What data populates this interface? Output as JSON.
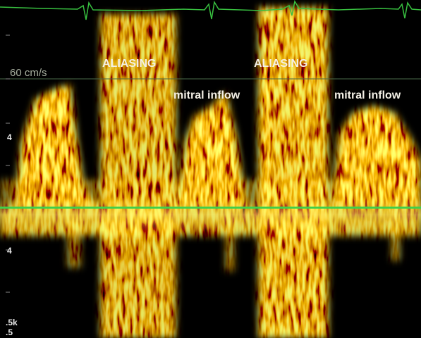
{
  "scale_label": "60 cm/s",
  "annotations": [
    "ALIASING",
    "ALIASING",
    "mitral inflow",
    "mitral inflow"
  ],
  "left_ticks": [
    "4",
    "4"
  ],
  "bottom_labels": [
    ".5k",
    ".5"
  ]
}
